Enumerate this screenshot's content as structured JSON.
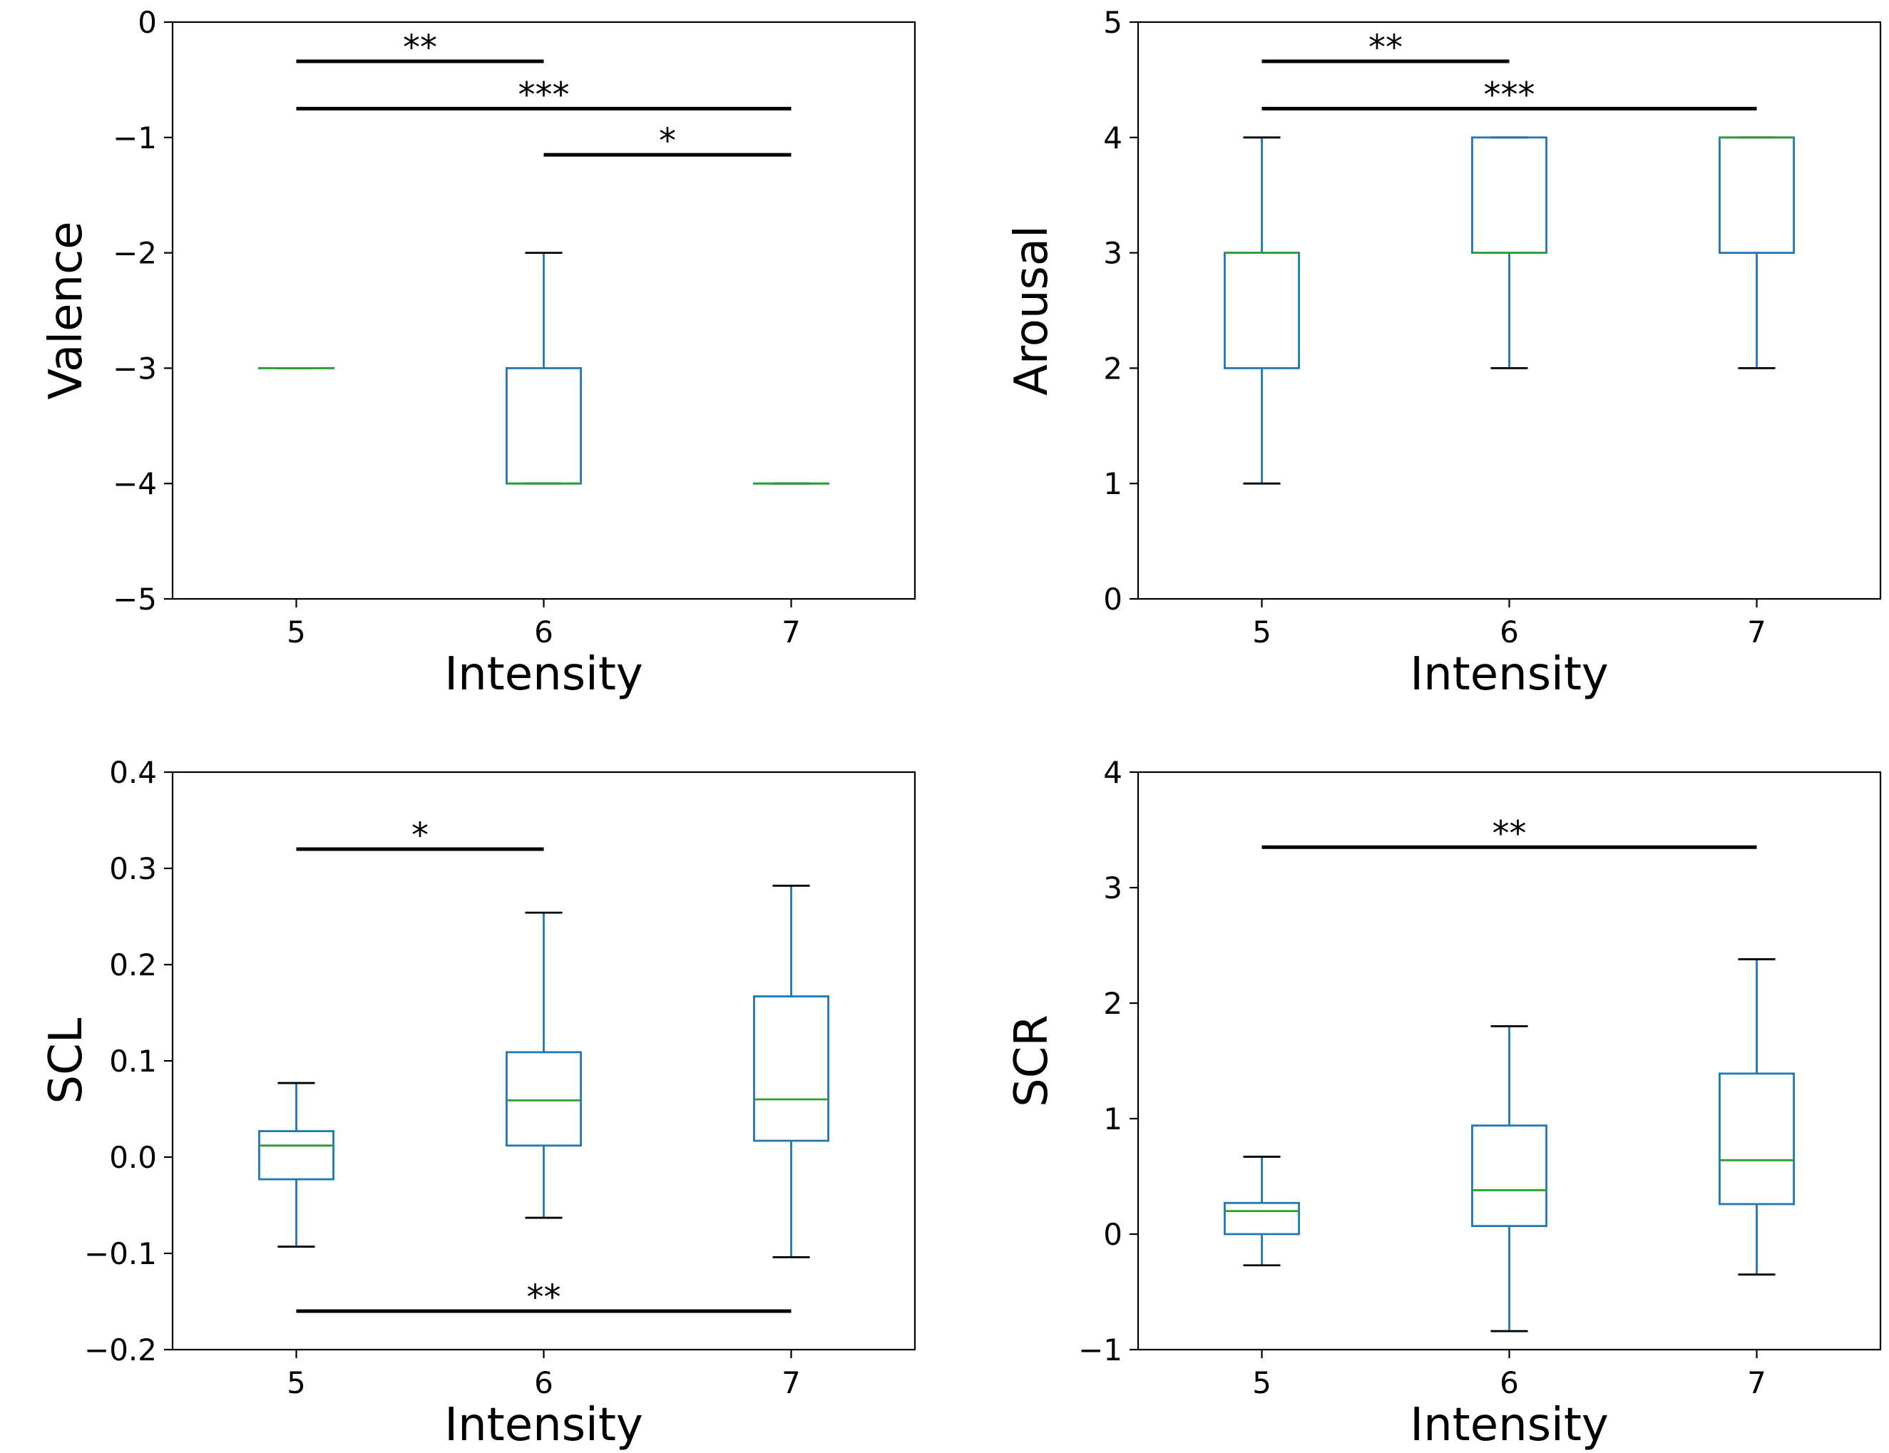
{
  "colors": {
    "box": "#1f77b4",
    "median": "#2ca02c",
    "axis": "#000000",
    "sig": "#000000"
  },
  "chart_data": [
    {
      "type": "box",
      "id": "valence",
      "xlabel": "Intensity",
      "ylabel": "Valence",
      "categories": [
        "5",
        "6",
        "7"
      ],
      "ylim": [
        -5,
        0
      ],
      "yticks": [
        -5,
        -4,
        -3,
        -2,
        -1,
        0
      ],
      "ytick_labels": [
        "−5",
        "−4",
        "−3",
        "−2",
        "−1",
        "0"
      ],
      "boxes": [
        {
          "category": "5",
          "whisker_low": -3,
          "q1": -3,
          "median": -3,
          "q3": -3,
          "whisker_high": -3
        },
        {
          "category": "6",
          "whisker_low": -4,
          "q1": -4,
          "median": -4,
          "q3": -3,
          "whisker_high": -2
        },
        {
          "category": "7",
          "whisker_low": -4,
          "q1": -4,
          "median": -4,
          "q3": -4,
          "whisker_high": -4
        }
      ],
      "significance": [
        {
          "from": "5",
          "to": "6",
          "y": -0.34,
          "label": "**"
        },
        {
          "from": "5",
          "to": "7",
          "y": -0.75,
          "label": "***"
        },
        {
          "from": "6",
          "to": "7",
          "y": -1.15,
          "label": "*"
        }
      ]
    },
    {
      "type": "box",
      "id": "arousal",
      "xlabel": "Intensity",
      "ylabel": "Arousal",
      "categories": [
        "5",
        "6",
        "7"
      ],
      "ylim": [
        0,
        5
      ],
      "yticks": [
        0,
        1,
        2,
        3,
        4,
        5
      ],
      "ytick_labels": [
        "0",
        "1",
        "2",
        "3",
        "4",
        "5"
      ],
      "boxes": [
        {
          "category": "5",
          "whisker_low": 1,
          "q1": 2,
          "median": 3,
          "q3": 3,
          "whisker_high": 4
        },
        {
          "category": "6",
          "whisker_low": 2,
          "q1": 3,
          "median": 3,
          "q3": 4,
          "whisker_high": 4
        },
        {
          "category": "7",
          "whisker_low": 2,
          "q1": 3,
          "median": 4,
          "q3": 4,
          "whisker_high": 4
        }
      ],
      "significance": [
        {
          "from": "5",
          "to": "6",
          "y": 4.66,
          "label": "**"
        },
        {
          "from": "5",
          "to": "7",
          "y": 4.25,
          "label": "***"
        }
      ]
    },
    {
      "type": "box",
      "id": "scl",
      "xlabel": "Intensity",
      "ylabel": "SCL",
      "categories": [
        "5",
        "6",
        "7"
      ],
      "ylim": [
        -0.2,
        0.4
      ],
      "yticks": [
        -0.2,
        -0.1,
        0.0,
        0.1,
        0.2,
        0.3,
        0.4
      ],
      "ytick_labels": [
        "−0.2",
        "−0.1",
        "0.0",
        "0.1",
        "0.2",
        "0.3",
        "0.4"
      ],
      "boxes": [
        {
          "category": "5",
          "whisker_low": -0.093,
          "q1": -0.023,
          "median": 0.012,
          "q3": 0.027,
          "whisker_high": 0.077
        },
        {
          "category": "6",
          "whisker_low": -0.063,
          "q1": 0.012,
          "median": 0.059,
          "q3": 0.109,
          "whisker_high": 0.254
        },
        {
          "category": "7",
          "whisker_low": -0.104,
          "q1": 0.017,
          "median": 0.06,
          "q3": 0.167,
          "whisker_high": 0.282
        }
      ],
      "significance": [
        {
          "from": "5",
          "to": "6",
          "y": 0.32,
          "label": "*"
        },
        {
          "from": "5",
          "to": "7",
          "y": -0.16,
          "label": "**"
        }
      ]
    },
    {
      "type": "box",
      "id": "scr",
      "xlabel": "Intensity",
      "ylabel": "SCR",
      "categories": [
        "5",
        "6",
        "7"
      ],
      "ylim": [
        -1,
        4
      ],
      "yticks": [
        -1,
        0,
        1,
        2,
        3,
        4
      ],
      "ytick_labels": [
        "−1",
        "0",
        "1",
        "2",
        "3",
        "4"
      ],
      "boxes": [
        {
          "category": "5",
          "whisker_low": -0.27,
          "q1": 0.0,
          "median": 0.2,
          "q3": 0.27,
          "whisker_high": 0.67
        },
        {
          "category": "6",
          "whisker_low": -0.84,
          "q1": 0.07,
          "median": 0.38,
          "q3": 0.94,
          "whisker_high": 1.8
        },
        {
          "category": "7",
          "whisker_low": -0.35,
          "q1": 0.26,
          "median": 0.64,
          "q3": 1.39,
          "whisker_high": 2.38
        }
      ],
      "significance": [
        {
          "from": "5",
          "to": "7",
          "y": 3.35,
          "label": "**"
        }
      ]
    }
  ]
}
